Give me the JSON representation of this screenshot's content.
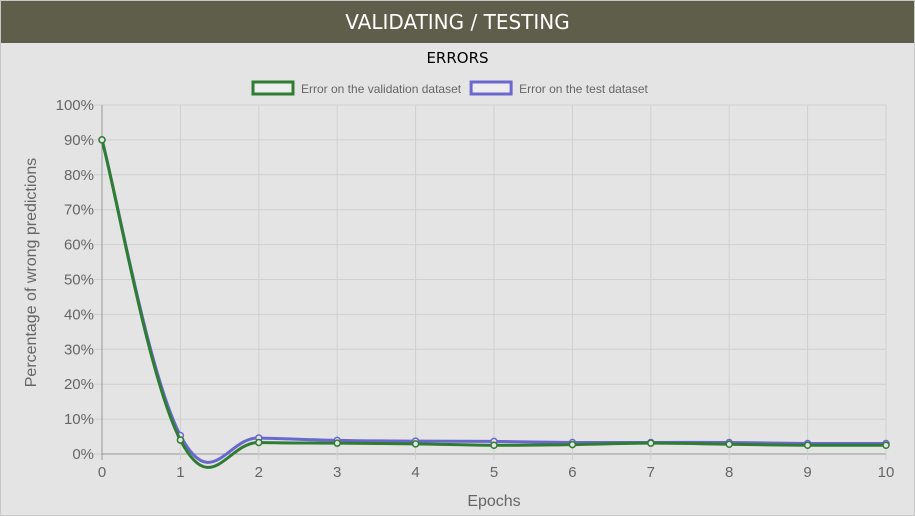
{
  "header": {
    "title": "VALIDATING / TESTING"
  },
  "chart_data": {
    "type": "line",
    "title": "ERRORS",
    "xlabel": "Epochs",
    "ylabel": "Percentage of wrong predictions",
    "x": [
      0,
      1,
      2,
      3,
      4,
      5,
      6,
      7,
      8,
      9,
      10
    ],
    "xlim": [
      0,
      10
    ],
    "ylim": [
      0,
      100
    ],
    "y_tick_labels": [
      "0%",
      "10%",
      "20%",
      "30%",
      "40%",
      "50%",
      "60%",
      "70%",
      "80%",
      "90%",
      "100%"
    ],
    "x_tick_labels": [
      "0",
      "1",
      "2",
      "3",
      "4",
      "5",
      "6",
      "7",
      "8",
      "9",
      "10"
    ],
    "grid": true,
    "legend_position": "top",
    "series": [
      {
        "name": "Error on the validation dataset",
        "color": "#2e7d32",
        "values": [
          90,
          4,
          3.3,
          3.1,
          2.9,
          2.5,
          2.7,
          3.1,
          2.8,
          2.5,
          2.5
        ]
      },
      {
        "name": "Error on the test dataset",
        "color": "#6a67ce",
        "values": [
          90,
          5.3,
          4.6,
          3.9,
          3.7,
          3.6,
          3.3,
          3.3,
          3.3,
          3.0,
          3.0
        ]
      }
    ]
  }
}
